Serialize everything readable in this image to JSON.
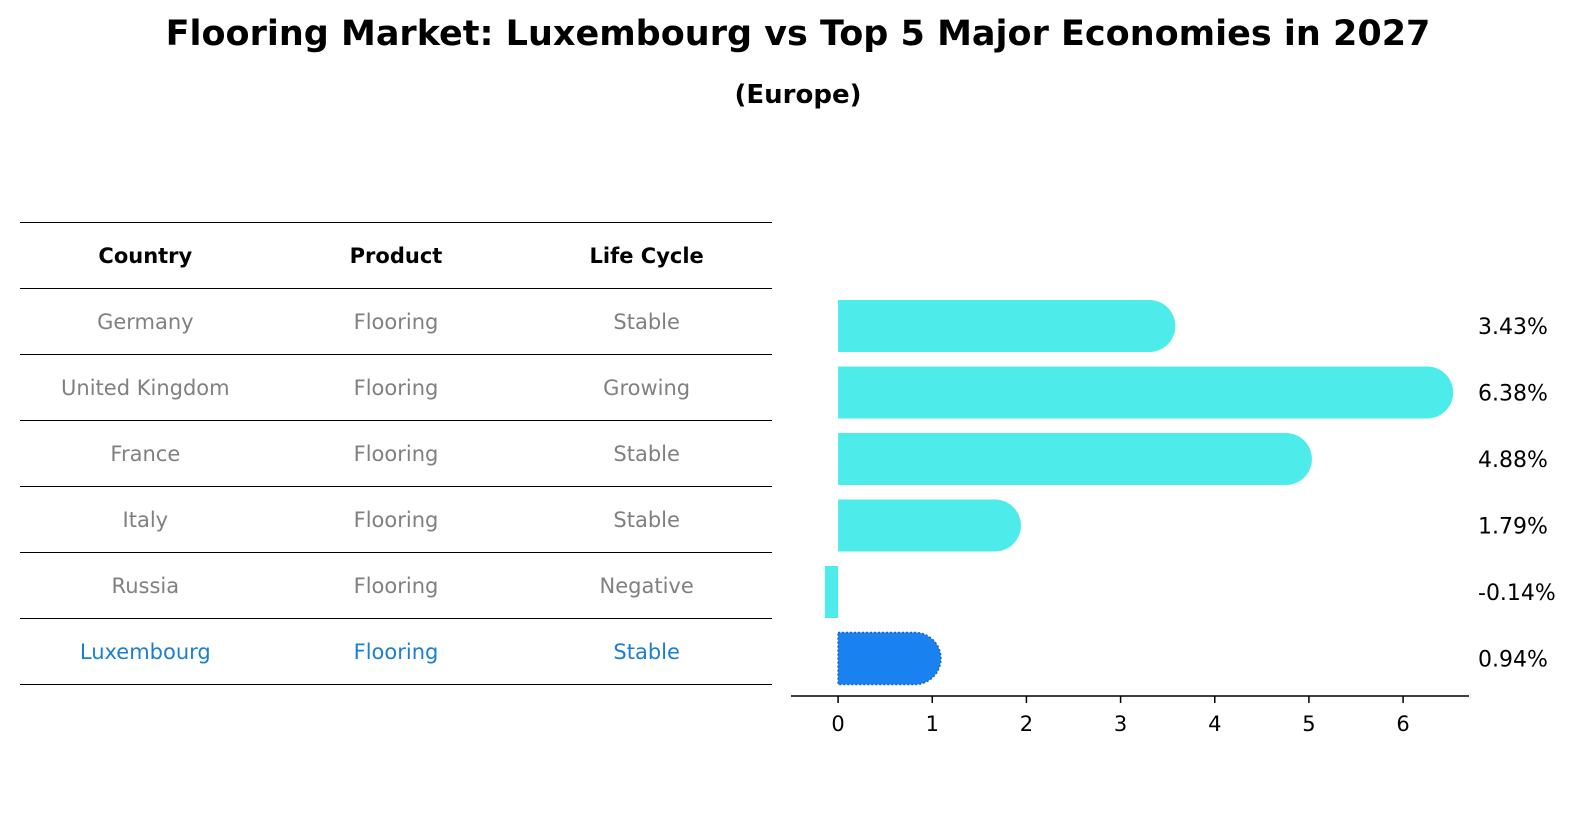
{
  "header": {
    "title": "Flooring Market: Luxembourg vs Top 5 Major Economies in 2027",
    "subtitle": "(Europe)"
  },
  "table": {
    "columns": [
      "Country",
      "Product",
      "Life Cycle"
    ],
    "rows": [
      {
        "country": "Germany",
        "product": "Flooring",
        "life_cycle": "Stable"
      },
      {
        "country": "United Kingdom",
        "product": "Flooring",
        "life_cycle": "Growing"
      },
      {
        "country": "France",
        "product": "Flooring",
        "life_cycle": "Stable"
      },
      {
        "country": "Italy",
        "product": "Flooring",
        "life_cycle": "Stable"
      },
      {
        "country": "Russia",
        "product": "Flooring",
        "life_cycle": "Negative"
      },
      {
        "country": "Luxembourg",
        "product": "Flooring",
        "life_cycle": "Stable"
      }
    ]
  },
  "colors": {
    "bar": "#4deceb",
    "highlight_bar": "#1a82f0",
    "highlight_text": "#1a7fd4",
    "muted_text": "#808080"
  },
  "chart_data": {
    "type": "bar",
    "orientation": "horizontal",
    "categories": [
      "Germany",
      "United Kingdom",
      "France",
      "Italy",
      "Russia",
      "Luxembourg"
    ],
    "values": [
      3.43,
      6.38,
      4.88,
      1.79,
      -0.14,
      0.94
    ],
    "value_labels": [
      "3.43%",
      "6.38%",
      "4.88%",
      "1.79%",
      "-0.14%",
      "0.94%"
    ],
    "highlight_index": 5,
    "xlim": [
      -0.5,
      6.7
    ],
    "xticks": [
      0,
      1,
      2,
      3,
      4,
      5,
      6
    ],
    "xlabel": "",
    "ylabel": "",
    "grid": false
  }
}
